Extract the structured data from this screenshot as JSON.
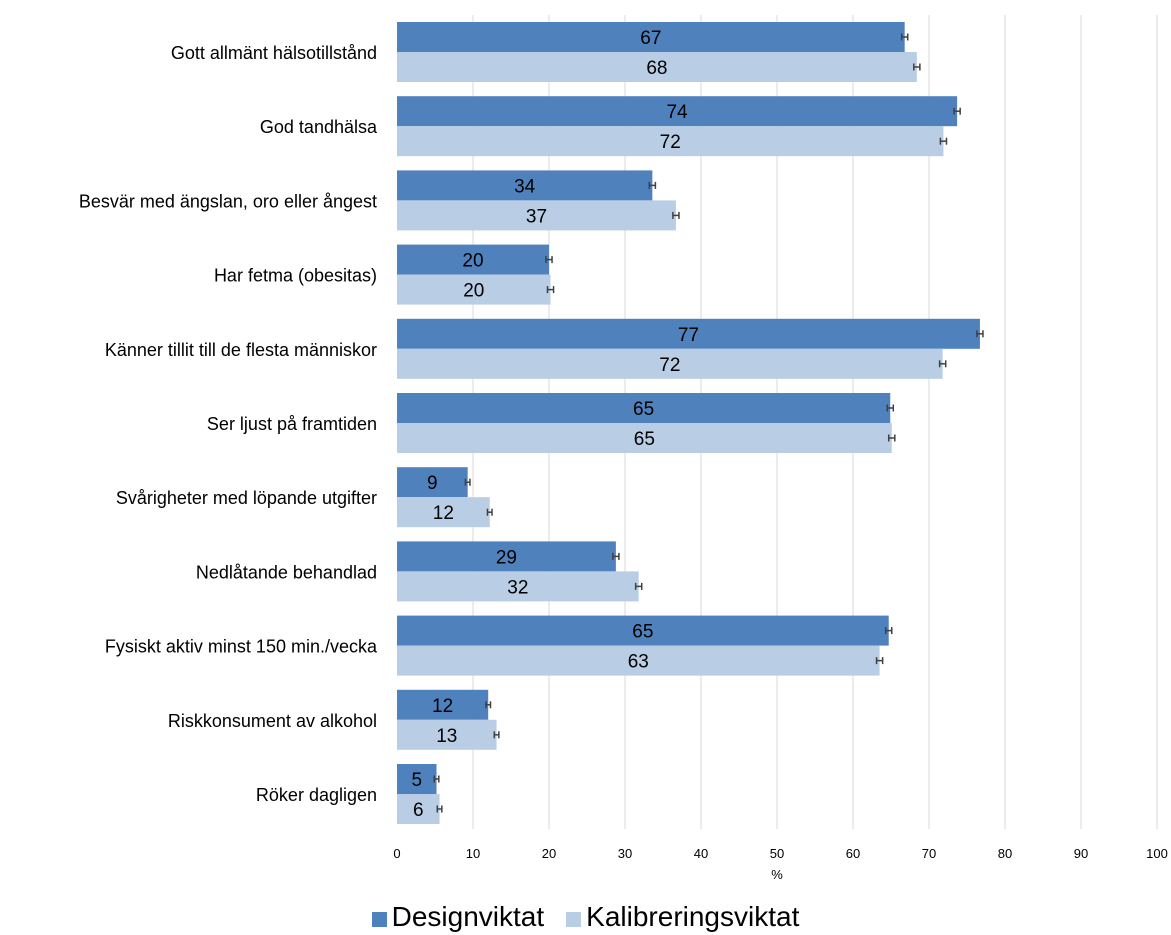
{
  "chart_data": {
    "type": "bar",
    "orientation": "horizontal",
    "categories": [
      "Gott allmänt hälsotillstånd",
      "God tandhälsa",
      "Besvär med ängslan, oro eller ångest",
      "Har fetma (obesitas)",
      "Känner tillit till de flesta människor",
      "Ser ljust på framtiden",
      "Svårigheter med löpande utgifter",
      "Nedlåtande behandlad",
      "Fysiskt aktiv minst 150 min./vecka",
      "Riskkonsument av alkohol",
      "Röker dagligen"
    ],
    "series": [
      {
        "name": "Designviktat",
        "color": "#4F81BD",
        "values": [
          66.8,
          73.7,
          33.6,
          20.0,
          76.7,
          64.9,
          9.3,
          28.8,
          64.7,
          12.0,
          5.2
        ],
        "labels": [
          "67",
          "74",
          "34",
          "20",
          "77",
          "65",
          "9",
          "29",
          "65",
          "12",
          "5"
        ],
        "error": [
          0.4,
          0.4,
          0.4,
          0.4,
          0.4,
          0.4,
          0.3,
          0.4,
          0.4,
          0.3,
          0.3
        ]
      },
      {
        "name": "Kalibreringsviktat",
        "color": "#B9CDE5",
        "values": [
          68.4,
          71.9,
          36.7,
          20.2,
          71.8,
          65.1,
          12.2,
          31.8,
          63.5,
          13.1,
          5.6
        ],
        "labels": [
          "68",
          "72",
          "37",
          "20",
          "72",
          "65",
          "12",
          "32",
          "63",
          "13",
          "6"
        ],
        "error": [
          0.4,
          0.4,
          0.4,
          0.4,
          0.4,
          0.4,
          0.3,
          0.4,
          0.4,
          0.3,
          0.3
        ]
      }
    ],
    "xlim": [
      0,
      100
    ],
    "xticks": [
      "0",
      "10",
      "20",
      "30",
      "40",
      "50",
      "60",
      "70",
      "80",
      "90",
      "100"
    ],
    "xlabel": "%",
    "grid": "vertical",
    "legend_position": "bottom",
    "error_bars": true
  }
}
